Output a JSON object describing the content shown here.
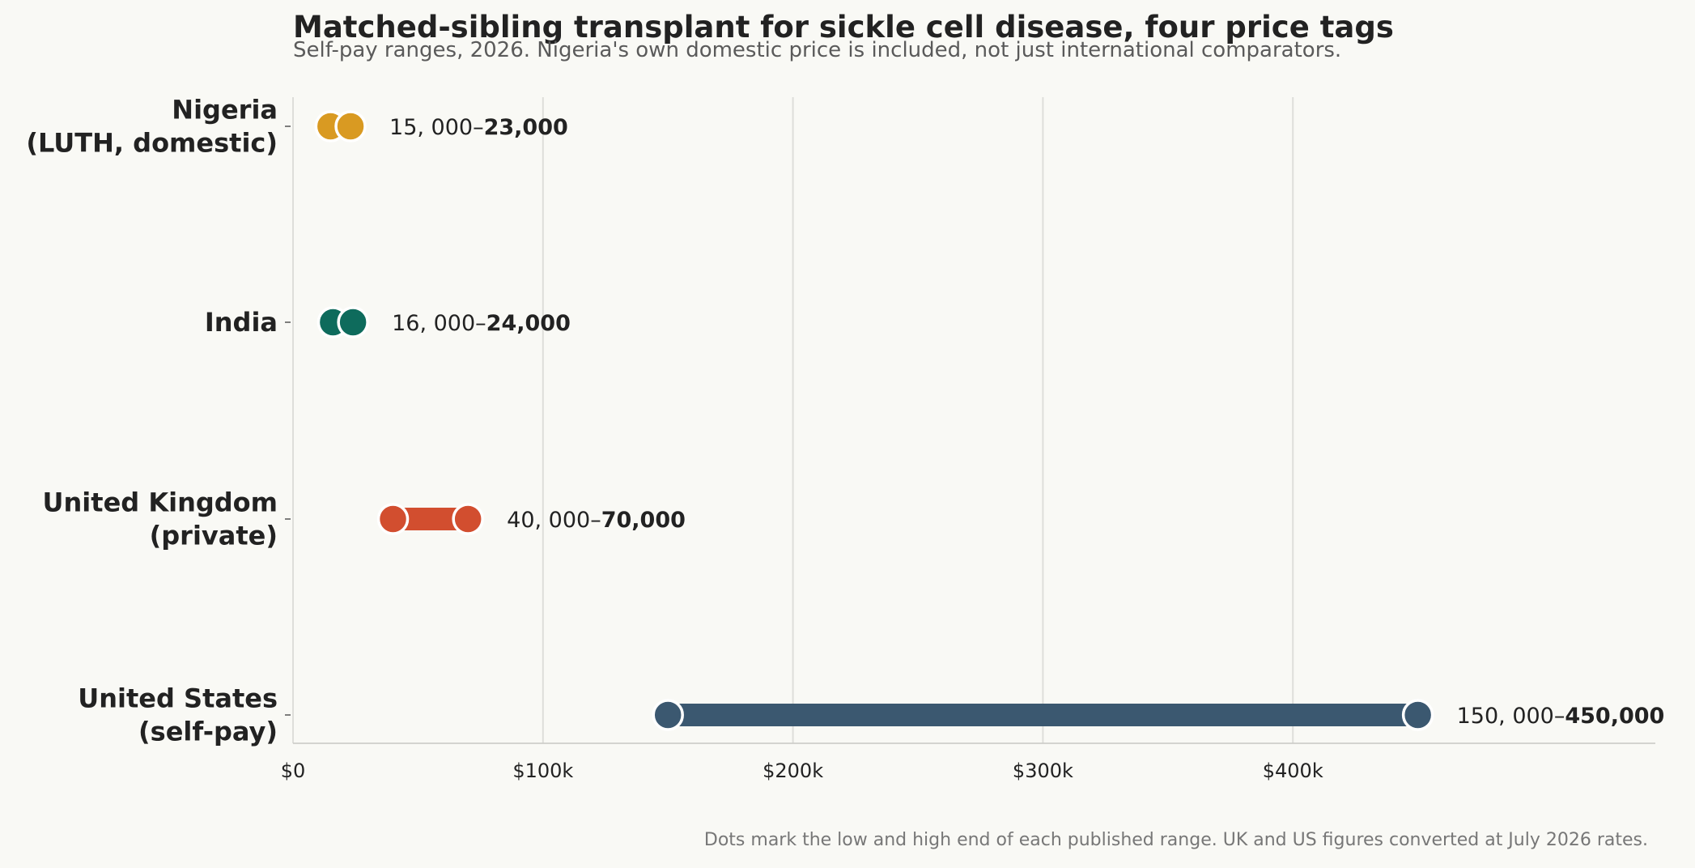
{
  "title": "Matched-sibling transplant for sickle cell disease, four price tags",
  "subtitle": "Self-pay ranges, 2026. Nigeria's own domestic price is included, not just international comparators.",
  "caption": "Dots mark the low and high end of each published range. UK and US figures converted at July 2026 rates.",
  "chart_data": {
    "type": "dumbbell",
    "title": "Matched-sibling transplant for sickle cell disease, four price tags",
    "subtitle": "Self-pay ranges, 2026. Nigeria's own domestic price is included, not just international comparators.",
    "xlabel": "",
    "ylabel": "",
    "xlim": [
      0,
      545000
    ],
    "x_ticks": [
      0,
      100000,
      200000,
      300000,
      400000
    ],
    "x_tick_labels": [
      "$0",
      "$100k",
      "$200k",
      "$300k",
      "$400k"
    ],
    "grid": "vertical",
    "rows": [
      {
        "label_lines": [
          "Nigeria",
          "(LUTH, domestic)"
        ],
        "low": 15000,
        "high": 23000,
        "low_text": "15, 000–",
        "high_text": "23,000",
        "color": "#d99a22"
      },
      {
        "label_lines": [
          "India"
        ],
        "low": 16000,
        "high": 24000,
        "low_text": "16, 000–",
        "high_text": "24,000",
        "color": "#0e6b5c"
      },
      {
        "label_lines": [
          "United Kingdom",
          "(private)"
        ],
        "low": 40000,
        "high": 70000,
        "low_text": "40, 000–",
        "high_text": "70,000",
        "color": "#d24e2f"
      },
      {
        "label_lines": [
          "United States",
          "(self-pay)"
        ],
        "low": 150000,
        "high": 450000,
        "low_text": "150, 000–",
        "high_text": "450,000",
        "color": "#3b5870"
      }
    ]
  }
}
